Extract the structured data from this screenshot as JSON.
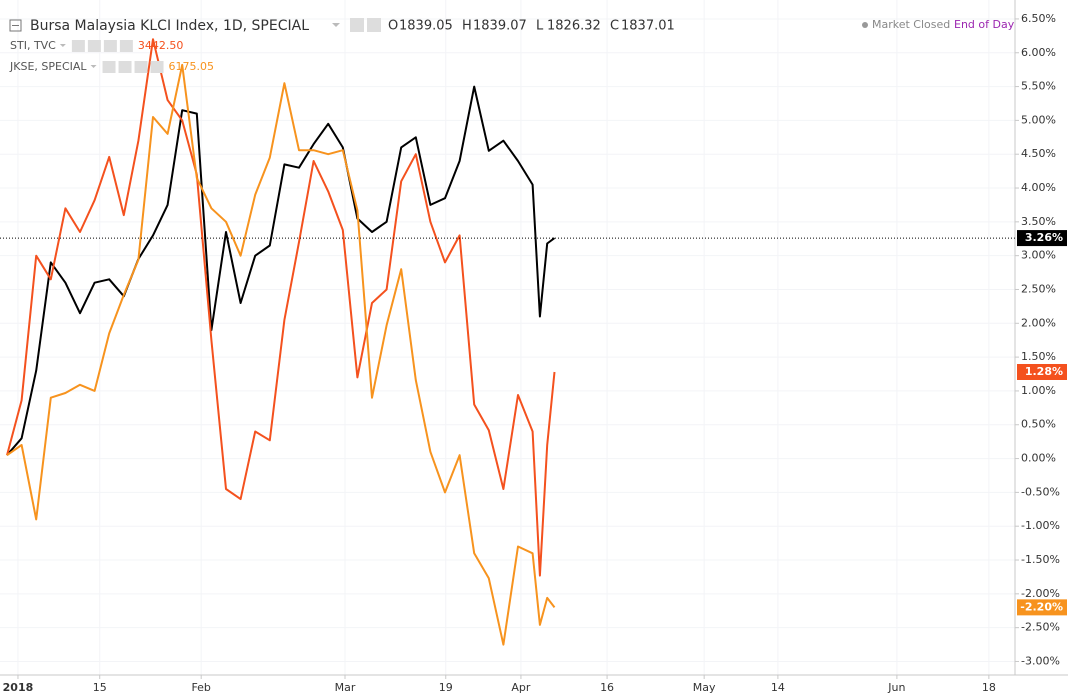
{
  "chart_data": {
    "type": "line",
    "ohlc": [
      {
        "key": "O",
        "value": "1839.05"
      },
      {
        "key": "H",
        "value": "1839.07"
      },
      {
        "key": "L",
        "value": "1826.32"
      },
      {
        "key": "C",
        "value": "1837.01"
      }
    ],
    "x": [
      0,
      2,
      4,
      6,
      8,
      10,
      12,
      14,
      16,
      18,
      20,
      22,
      24,
      26,
      28,
      30,
      32,
      34,
      36,
      38,
      40,
      42,
      44,
      46,
      48,
      50,
      52,
      54,
      56,
      58,
      60,
      62,
      64,
      66,
      68,
      70,
      72,
      73,
      74,
      75
    ],
    "xlim": [
      -0.96,
      138.08
    ],
    "xticks": [
      {
        "value": 1.5,
        "label": "2018"
      },
      {
        "value": 12.7,
        "label": "15"
      },
      {
        "value": 26.6,
        "label": "Feb"
      },
      {
        "value": 46.3,
        "label": "Mar"
      },
      {
        "value": 60.1,
        "label": "19"
      },
      {
        "value": 70.4,
        "label": "Apr"
      },
      {
        "value": 82.2,
        "label": "16"
      },
      {
        "value": 95.5,
        "label": "May"
      },
      {
        "value": 105.6,
        "label": "14"
      },
      {
        "value": 121.9,
        "label": "Jun"
      },
      {
        "value": 134.5,
        "label": "18"
      }
    ],
    "ylim": [
      -3.2,
      6.78
    ],
    "yticks": [
      {
        "value": 6.5,
        "label": "6.50%"
      },
      {
        "value": 6,
        "label": "6.00%"
      },
      {
        "value": 5.5,
        "label": "5.50%"
      },
      {
        "value": 5,
        "label": "5.00%"
      },
      {
        "value": 4.5,
        "label": "4.50%"
      },
      {
        "value": 4,
        "label": "4.00%"
      },
      {
        "value": 3.5,
        "label": "3.50%"
      },
      {
        "value": 3,
        "label": "3.00%"
      },
      {
        "value": 2.5,
        "label": "2.50%"
      },
      {
        "value": 2,
        "label": "2.00%"
      },
      {
        "value": 1.5,
        "label": "1.50%"
      },
      {
        "value": 1,
        "label": "1.00%"
      },
      {
        "value": 0.5,
        "label": "0.50%"
      },
      {
        "value": 0,
        "label": "0.00%"
      },
      {
        "value": -0.5,
        "label": "-0.50%"
      },
      {
        "value": -1,
        "label": "-1.00%"
      },
      {
        "value": -1.5,
        "label": "-1.50%"
      },
      {
        "value": -2,
        "label": "-2.00%"
      },
      {
        "value": -2.5,
        "label": "-2.50%"
      },
      {
        "value": -3,
        "label": "-3.00%"
      }
    ],
    "grid": true,
    "series": [
      {
        "name": "Bursa Malaysia KLCI Index, 1D, SPECIAL",
        "color": "#000000",
        "end_label": "3.26%",
        "values": [
          0.05,
          0.3,
          1.3,
          2.9,
          2.6,
          2.15,
          2.6,
          2.65,
          2.4,
          2.95,
          3.3,
          3.75,
          5.15,
          5.1,
          1.9,
          3.35,
          2.3,
          3.0,
          3.15,
          4.35,
          4.3,
          4.65,
          4.95,
          4.6,
          3.55,
          3.35,
          3.5,
          4.6,
          4.75,
          3.75,
          3.85,
          4.4,
          5.5,
          4.55,
          4.7,
          4.4,
          4.05,
          2.1,
          3.18,
          3.26
        ]
      },
      {
        "name": "STI, TVC",
        "color": "#f4511e",
        "last_price": "3442.50",
        "end_label": "1.28%",
        "values": [
          0.05,
          0.86,
          3.0,
          2.65,
          3.7,
          3.35,
          3.82,
          4.46,
          3.6,
          4.7,
          6.2,
          5.3,
          5.0,
          4.2,
          1.75,
          -0.45,
          -0.6,
          0.4,
          0.27,
          2.05,
          3.2,
          4.4,
          3.95,
          3.38,
          1.2,
          2.3,
          2.5,
          4.1,
          4.5,
          3.5,
          2.9,
          3.3,
          0.8,
          0.42,
          -0.45,
          0.94,
          0.4,
          -1.73,
          0.2,
          1.28
        ]
      },
      {
        "name": "JKSE, SPECIAL",
        "color": "#f7931e",
        "last_price": "6175.05",
        "end_label": "-2.20%",
        "values": [
          0.05,
          0.2,
          -0.9,
          0.9,
          0.97,
          1.09,
          1.0,
          1.85,
          2.42,
          2.94,
          5.05,
          4.8,
          5.82,
          4.15,
          3.7,
          3.5,
          3.0,
          3.9,
          4.45,
          5.55,
          4.56,
          4.56,
          4.5,
          4.56,
          3.67,
          0.9,
          1.97,
          2.8,
          1.16,
          0.1,
          -0.5,
          0.05,
          -1.4,
          -1.77,
          -2.75,
          -1.3,
          -1.4,
          -2.46,
          -2.06,
          -2.2
        ]
      }
    ]
  },
  "status": "Market Closed",
  "mode": "End of Day"
}
